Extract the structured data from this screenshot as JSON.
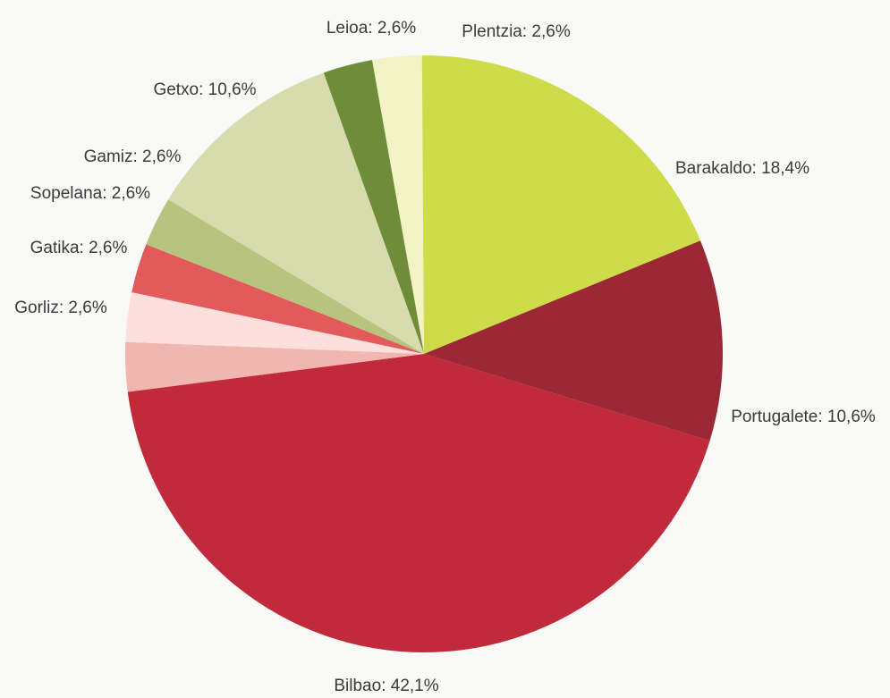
{
  "chart_data": {
    "type": "pie",
    "title": "",
    "unit": "%",
    "slices": [
      {
        "label": "Plentzia: 2,6%",
        "category": "Plentzia",
        "value": 2.6,
        "color": "#f3f3c6"
      },
      {
        "label": "Barakaldo: 18,4%",
        "category": "Barakaldo",
        "value": 18.4,
        "color": "#cfdc4a"
      },
      {
        "label": "Portugalete: 10,6%",
        "category": "Portugalete",
        "value": 10.6,
        "color": "#9b2834"
      },
      {
        "label": "Bilbao: 42,1%",
        "category": "Bilbao",
        "value": 42.1,
        "color": "#c12a3b"
      },
      {
        "label": "Gorliz: 2,6%",
        "category": "Gorliz",
        "value": 2.6,
        "color": "#f2b6b1"
      },
      {
        "label": "Gatika: 2,6%",
        "category": "Gatika",
        "value": 2.6,
        "color": "#fbe0dc"
      },
      {
        "label": "Sopelana: 2,6%",
        "category": "Sopelana",
        "value": 2.6,
        "color": "#e35a5a"
      },
      {
        "label": "Gamiz: 2,6%",
        "category": "Gamiz",
        "value": 2.6,
        "color": "#b8c47d"
      },
      {
        "label": "Getxo: 10,6%",
        "category": "Getxo",
        "value": 10.6,
        "color": "#d6dcad"
      },
      {
        "label": "Leioa: 2,6%",
        "category": "Leioa",
        "value": 2.6,
        "color": "#6e8c3a"
      }
    ]
  }
}
